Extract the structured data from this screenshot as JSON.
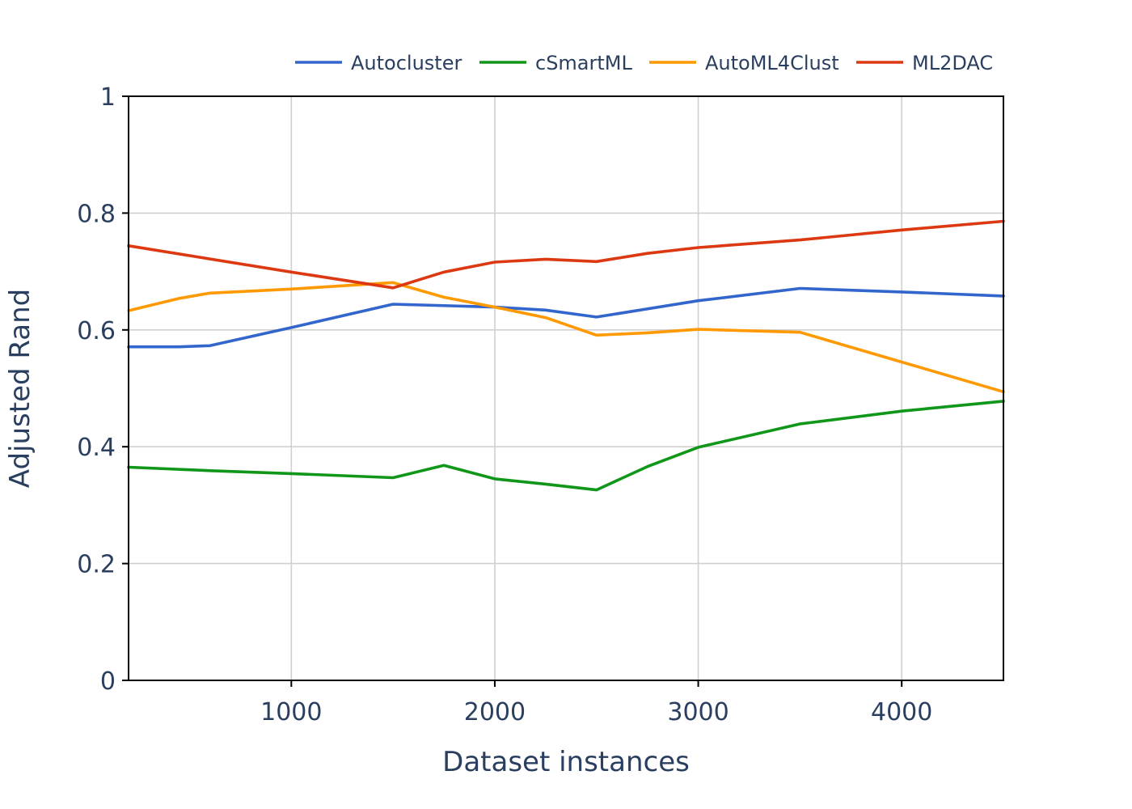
{
  "chart_data": {
    "type": "line",
    "title": "",
    "xlabel": "Dataset instances",
    "ylabel": "Adjusted Rand",
    "xlim": [
      200,
      4500
    ],
    "ylim": [
      0,
      1
    ],
    "x_ticks": [
      1000,
      2000,
      3000,
      4000
    ],
    "x_tick_labels": [
      "1000",
      "2000",
      "3000",
      "4000"
    ],
    "y_ticks": [
      0,
      0.2,
      0.4,
      0.6,
      0.8,
      1
    ],
    "y_tick_labels": [
      "0",
      "0.2",
      "0.4",
      "0.6",
      "0.8",
      "1"
    ],
    "grid": true,
    "legend_position": "top",
    "series": [
      {
        "name": "Autocluster",
        "color": "#3366cc",
        "x": [
          200,
          450,
          600,
          1000,
          1500,
          2000,
          2250,
          2500,
          3000,
          3500,
          4000,
          4500
        ],
        "y": [
          0.571,
          0.571,
          0.573,
          0.604,
          0.644,
          0.639,
          0.634,
          0.622,
          0.65,
          0.671,
          0.665,
          0.658
        ]
      },
      {
        "name": "cSmartML",
        "color": "#109618",
        "x": [
          200,
          600,
          1000,
          1500,
          1750,
          2000,
          2250,
          2500,
          2750,
          3000,
          3500,
          4000,
          4500
        ],
        "y": [
          0.365,
          0.359,
          0.354,
          0.347,
          0.368,
          0.345,
          0.336,
          0.326,
          0.366,
          0.399,
          0.439,
          0.461,
          0.478
        ]
      },
      {
        "name": "AutoML4Clust",
        "color": "#ff9900",
        "x": [
          200,
          450,
          600,
          1000,
          1500,
          1750,
          2000,
          2250,
          2500,
          2750,
          3000,
          3500,
          4000,
          4500
        ],
        "y": [
          0.633,
          0.654,
          0.663,
          0.67,
          0.681,
          0.656,
          0.639,
          0.621,
          0.591,
          0.595,
          0.601,
          0.596,
          0.545,
          0.494
        ]
      },
      {
        "name": "ML2DAC",
        "color": "#dc3912",
        "x": [
          200,
          1000,
          1500,
          1750,
          2000,
          2250,
          2500,
          2750,
          3000,
          3500,
          4000,
          4500
        ],
        "y": [
          0.744,
          0.699,
          0.672,
          0.699,
          0.716,
          0.721,
          0.717,
          0.731,
          0.741,
          0.754,
          0.771,
          0.786
        ]
      }
    ]
  }
}
